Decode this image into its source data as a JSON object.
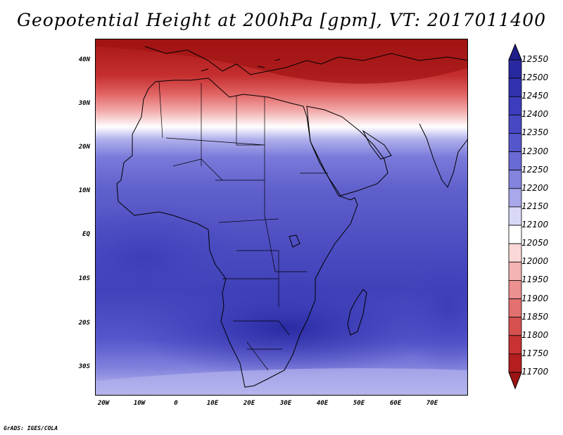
{
  "title": "Geopotential Height at 200hPa [gpm], VT: 2017011400",
  "footer": "GrADS: IGES/COLA",
  "lat_labels": [
    "40N",
    "30N",
    "20N",
    "10N",
    "EQ",
    "10S",
    "20S",
    "30S"
  ],
  "lon_labels": [
    "20W",
    "10W",
    "0",
    "10E",
    "20E",
    "30E",
    "40E",
    "50E",
    "60E",
    "70E"
  ],
  "colorbar": {
    "levels": [
      "12550",
      "12500",
      "12450",
      "12400",
      "12350",
      "12300",
      "12250",
      "12200",
      "12150",
      "12100",
      "12050",
      "12000",
      "11950",
      "11900",
      "11850",
      "11800",
      "11750",
      "11700"
    ],
    "colors": [
      "#1e1e8c",
      "#2828a0",
      "#3232b0",
      "#3c3cbc",
      "#4848c4",
      "#5656cc",
      "#6a6ad4",
      "#8484de",
      "#a8a8ea",
      "#d8d8f6",
      "#ffffff",
      "#fad8d8",
      "#f4b4b4",
      "#ec9090",
      "#e27070",
      "#d65050",
      "#c83232",
      "#b41e1e",
      "#9c1414"
    ]
  },
  "map": {
    "lon_range": [
      -22,
      80
    ],
    "lat_range": [
      -37,
      45
    ],
    "field_colors": {
      "north_max": "#a81616",
      "tropics": "#5252c6",
      "southern_trough": "#3030a8",
      "southern_edge": "#a8a8ea"
    }
  }
}
